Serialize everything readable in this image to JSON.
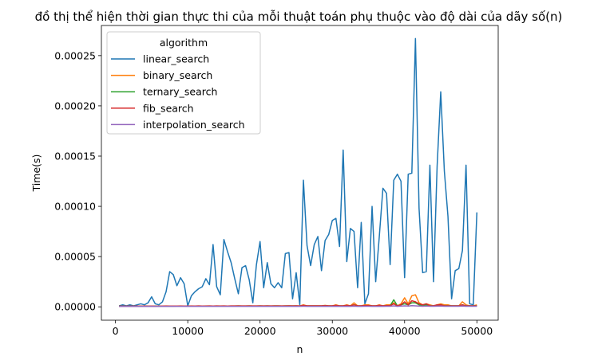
{
  "chart_data": {
    "type": "line",
    "title": "đồ thị thể hiện thời gian thực thi của mỗi thuật toán phụ thuộc vào độ dài của dãy số(n)",
    "xlabel": "n",
    "ylabel": "Time(s)",
    "xlim": [
      -1950,
      52950
    ],
    "ylim": [
      -1.33e-05,
      0.00028
    ],
    "x_ticks": [
      0,
      10000,
      20000,
      30000,
      40000,
      50000
    ],
    "x_tick_labels": [
      "0",
      "10000",
      "20000",
      "30000",
      "40000",
      "50000"
    ],
    "y_ticks": [
      0,
      5e-05,
      0.0001,
      0.00015,
      0.0002,
      0.00025
    ],
    "y_tick_labels": [
      "0.00000",
      "0.00005",
      "0.00010",
      "0.00015",
      "0.00020",
      "0.00025"
    ],
    "legend_title": "algorithm",
    "legend_position": "top-left",
    "x": [
      500,
      1000,
      1500,
      2000,
      2500,
      3000,
      3500,
      4000,
      4500,
      5000,
      5500,
      6000,
      6500,
      7000,
      7500,
      8000,
      8500,
      9000,
      9500,
      10000,
      10500,
      11000,
      11500,
      12000,
      12500,
      13000,
      13500,
      14000,
      14500,
      15000,
      15500,
      16000,
      16500,
      17000,
      17500,
      18000,
      18500,
      19000,
      19500,
      20000,
      20500,
      21000,
      21500,
      22000,
      22500,
      23000,
      23500,
      24000,
      24500,
      25000,
      25500,
      26000,
      26500,
      27000,
      27500,
      28000,
      28500,
      29000,
      29500,
      30000,
      30500,
      31000,
      31500,
      32000,
      32500,
      33000,
      33500,
      34000,
      34500,
      35000,
      35500,
      36000,
      36500,
      37000,
      37500,
      38000,
      38500,
      39000,
      39500,
      40000,
      40500,
      41000,
      41500,
      42000,
      42500,
      43000,
      43500,
      44000,
      44500,
      45000,
      45500,
      46000,
      46500,
      47000,
      47500,
      48000,
      48500,
      49000,
      49500,
      50000
    ],
    "series": [
      {
        "name": "linear_search",
        "color": "#1f77b4",
        "values": [
          1e-06,
          2e-06,
          1e-06,
          2e-06,
          1e-06,
          2e-06,
          3e-06,
          2e-06,
          4e-06,
          1e-05,
          3e-06,
          2e-06,
          5e-06,
          1.5e-05,
          3.5e-05,
          3.2e-05,
          2.1e-05,
          2.9e-05,
          2.3e-05,
          1e-06,
          1.1e-05,
          1.5e-05,
          1.8e-05,
          2e-05,
          2.8e-05,
          2.2e-05,
          6.2e-05,
          2e-05,
          1.2e-05,
          6.7e-05,
          5.5e-05,
          4.4e-05,
          2.8e-05,
          1.3e-05,
          3.9e-05,
          4.1e-05,
          2.7e-05,
          4e-06,
          4.2e-05,
          6.5e-05,
          1.9e-05,
          4.4e-05,
          2.3e-05,
          1.9e-05,
          2.4e-05,
          1.9e-05,
          5.3e-05,
          5.4e-05,
          8e-06,
          3.4e-05,
          2e-06,
          0.000126,
          6.1e-05,
          4.1e-05,
          6.2e-05,
          7e-05,
          3.6e-05,
          6.6e-05,
          7.2e-05,
          8.6e-05,
          8.8e-05,
          6e-05,
          0.000156,
          4.5e-05,
          7.8e-05,
          7.5e-05,
          1.9e-05,
          8.4e-05,
          3e-06,
          1.3e-05,
          0.0001,
          2.5e-05,
          7e-05,
          0.000118,
          0.000113,
          4.2e-05,
          0.000126,
          0.000132,
          0.000125,
          2.9e-05,
          0.000132,
          0.000133,
          0.000267,
          9.8e-05,
          3.4e-05,
          3.5e-05,
          0.000141,
          2.5e-05,
          0.00014,
          0.000214,
          0.000135,
          9e-05,
          8e-06,
          3.6e-05,
          3.8e-05,
          5.6e-05,
          0.000141,
          3e-06,
          2e-06,
          9.4e-05
        ]
      },
      {
        "name": "binary_search",
        "color": "#ff7f0e",
        "values": [
          6e-07,
          8e-07,
          7e-07,
          8e-07,
          7e-07,
          8e-07,
          7e-07,
          9e-07,
          8e-07,
          8e-07,
          7e-07,
          8e-07,
          8e-07,
          9e-07,
          8e-07,
          8e-07,
          8e-07,
          9e-07,
          8e-07,
          8e-07,
          9e-07,
          8e-07,
          9e-07,
          8e-07,
          9e-07,
          9e-07,
          8e-07,
          9e-07,
          9e-07,
          9e-07,
          8e-07,
          9e-07,
          9e-07,
          1e-06,
          9e-07,
          9e-07,
          1e-06,
          9e-07,
          9e-07,
          1e-06,
          9e-07,
          1e-06,
          9e-07,
          1e-06,
          1e-06,
          9e-07,
          1e-06,
          1e-06,
          1e-06,
          1e-06,
          9e-07,
          2e-06,
          1e-06,
          1e-06,
          1e-06,
          1e-06,
          1e-06,
          1.5e-06,
          1e-06,
          1e-06,
          2e-06,
          1e-06,
          1e-06,
          2e-06,
          1e-06,
          4e-06,
          1e-06,
          1e-06,
          2e-06,
          2e-06,
          1e-06,
          1e-06,
          2e-06,
          1e-06,
          2e-06,
          2e-06,
          4e-06,
          1e-06,
          3e-06,
          9e-06,
          3e-06,
          1.1e-05,
          1.2e-05,
          4e-06,
          2e-06,
          3e-06,
          2e-06,
          1e-06,
          2e-06,
          3e-06,
          2e-06,
          2e-06,
          1e-06,
          1e-06,
          1e-06,
          5e-06,
          2e-06,
          1e-06,
          1e-06,
          2e-06
        ]
      },
      {
        "name": "ternary_search",
        "color": "#2ca02c",
        "values": [
          6e-07,
          7e-07,
          7e-07,
          7e-07,
          7e-07,
          7e-07,
          7e-07,
          8e-07,
          7e-07,
          7e-07,
          7e-07,
          7e-07,
          7e-07,
          8e-07,
          7e-07,
          7e-07,
          8e-07,
          8e-07,
          8e-07,
          7e-07,
          8e-07,
          8e-07,
          8e-07,
          8e-07,
          8e-07,
          8e-07,
          8e-07,
          8e-07,
          8e-07,
          8e-07,
          8e-07,
          8e-07,
          8e-07,
          9e-07,
          8e-07,
          8e-07,
          9e-07,
          8e-07,
          8e-07,
          9e-07,
          8e-07,
          9e-07,
          8e-07,
          9e-07,
          9e-07,
          8e-07,
          9e-07,
          9e-07,
          9e-07,
          9e-07,
          8e-07,
          1.2e-06,
          9e-07,
          9e-07,
          9e-07,
          9e-07,
          9e-07,
          1e-06,
          9e-07,
          9e-07,
          1.2e-06,
          9e-07,
          9e-07,
          1.2e-06,
          9e-07,
          2e-06,
          9e-07,
          9e-07,
          1.1e-06,
          1.1e-06,
          9e-07,
          9e-07,
          1.2e-06,
          9e-07,
          1e-06,
          1e-06,
          7e-06,
          1e-06,
          2e-06,
          3e-06,
          2e-06,
          4e-06,
          4e-06,
          2e-06,
          1e-06,
          2e-06,
          1e-06,
          1e-06,
          1e-06,
          2e-06,
          1e-06,
          1e-06,
          1e-06,
          1e-06,
          1e-06,
          2e-06,
          1e-06,
          1e-06,
          1e-06,
          1e-06
        ]
      },
      {
        "name": "fib_search",
        "color": "#d62728",
        "values": [
          6e-07,
          7e-07,
          7e-07,
          7e-07,
          7e-07,
          8e-07,
          7e-07,
          8e-07,
          7e-07,
          8e-07,
          7e-07,
          7e-07,
          8e-07,
          8e-07,
          8e-07,
          8e-07,
          8e-07,
          8e-07,
          8e-07,
          8e-07,
          8e-07,
          8e-07,
          9e-07,
          8e-07,
          8e-07,
          9e-07,
          8e-07,
          9e-07,
          8e-07,
          9e-07,
          8e-07,
          9e-07,
          9e-07,
          9e-07,
          9e-07,
          9e-07,
          9e-07,
          9e-07,
          9e-07,
          9e-07,
          9e-07,
          9e-07,
          9e-07,
          9e-07,
          9e-07,
          9e-07,
          9e-07,
          1e-06,
          9e-07,
          1e-06,
          9e-07,
          1.5e-06,
          1e-06,
          1e-06,
          1e-06,
          1e-06,
          1e-06,
          1.2e-06,
          1e-06,
          1e-06,
          1.5e-06,
          1e-06,
          1e-06,
          1.5e-06,
          1e-06,
          2e-06,
          1e-06,
          1e-06,
          1.3e-06,
          1.3e-06,
          1e-06,
          1e-06,
          1.5e-06,
          1e-06,
          1.2e-06,
          1.2e-06,
          3e-06,
          1e-06,
          2e-06,
          5e-06,
          2e-06,
          6e-06,
          5e-06,
          3e-06,
          2e-06,
          3e-06,
          1e-06,
          1e-06,
          2e-06,
          2e-06,
          1e-06,
          1e-06,
          1e-06,
          1e-06,
          1e-06,
          2e-06,
          1e-06,
          1e-06,
          1e-06,
          1e-06
        ]
      },
      {
        "name": "interpolation_search",
        "color": "#9467bd",
        "values": [
          4e-07,
          5e-07,
          5e-07,
          5e-07,
          5e-07,
          5e-07,
          5e-07,
          5e-07,
          5e-07,
          5e-07,
          5e-07,
          5e-07,
          5e-07,
          5e-07,
          5e-07,
          5e-07,
          5e-07,
          5e-07,
          5e-07,
          5e-07,
          5e-07,
          5e-07,
          5e-07,
          5e-07,
          5e-07,
          5e-07,
          5e-07,
          5e-07,
          5e-07,
          5e-07,
          5e-07,
          5e-07,
          5e-07,
          5e-07,
          5e-07,
          5e-07,
          5e-07,
          5e-07,
          5e-07,
          5e-07,
          5e-07,
          5e-07,
          5e-07,
          5e-07,
          5e-07,
          5e-07,
          5e-07,
          5e-07,
          5e-07,
          5e-07,
          5e-07,
          6e-07,
          5e-07,
          5e-07,
          5e-07,
          5e-07,
          5e-07,
          6e-07,
          5e-07,
          5e-07,
          6e-07,
          5e-07,
          5e-07,
          6e-07,
          5e-07,
          7e-07,
          5e-07,
          5e-07,
          6e-07,
          6e-07,
          5e-07,
          5e-07,
          6e-07,
          5e-07,
          6e-07,
          6e-07,
          1e-06,
          5e-07,
          8e-07,
          1e-06,
          8e-07,
          1.2e-06,
          1e-06,
          8e-07,
          6e-07,
          8e-07,
          6e-07,
          6e-07,
          7e-07,
          8e-07,
          6e-07,
          6e-07,
          6e-07,
          6e-07,
          6e-07,
          8e-07,
          6e-07,
          6e-07,
          6e-07,
          6e-07
        ]
      }
    ]
  }
}
